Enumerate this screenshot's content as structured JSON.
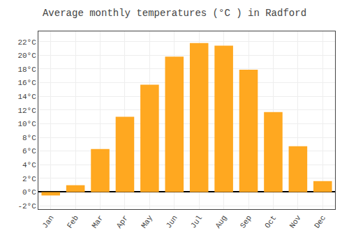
{
  "chart_data": {
    "type": "bar",
    "title": "Average monthly temperatures (°C ) in Radford",
    "categories": [
      "Jan",
      "Feb",
      "Mar",
      "Apr",
      "May",
      "Jun",
      "Jul",
      "Aug",
      "Sep",
      "Oct",
      "Nov",
      "Dec"
    ],
    "values": [
      -0.5,
      1.0,
      6.3,
      11.0,
      15.7,
      19.8,
      21.8,
      21.4,
      17.9,
      11.7,
      6.7,
      1.6
    ],
    "color": "#FFA820",
    "ylim": [
      -2.5,
      23.5
    ],
    "yticks": [
      {
        "value": -2,
        "label": "-2°C"
      },
      {
        "value": 0,
        "label": "0°C"
      },
      {
        "value": 2,
        "label": "2°C"
      },
      {
        "value": 4,
        "label": "4°C"
      },
      {
        "value": 6,
        "label": "6°C"
      },
      {
        "value": 8,
        "label": "8°C"
      },
      {
        "value": 10,
        "label": "10°C"
      },
      {
        "value": 12,
        "label": "12°C"
      },
      {
        "value": 14,
        "label": "14°C"
      },
      {
        "value": 16,
        "label": "16°C"
      },
      {
        "value": 18,
        "label": "18°C"
      },
      {
        "value": 20,
        "label": "20°C"
      },
      {
        "value": 22,
        "label": "22°C"
      }
    ],
    "grid": true
  }
}
